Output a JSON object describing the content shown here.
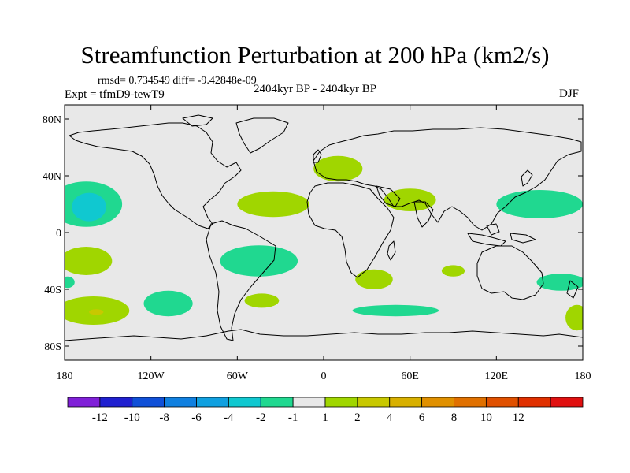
{
  "title": "Streamfunction Perturbation at 200 hPa (km2/s)",
  "stats": "rmsd= 0.734549 diff= -9.42848e-09",
  "experiment": "Expt = tfmD9-tewT9",
  "period": "2404kyr BP - 2404kyr BP",
  "season": "DJF",
  "map": {
    "background_color": "#e8e8e8",
    "lat_labels": [
      "80N",
      "40N",
      "0",
      "40S",
      "80S"
    ],
    "lon_labels": [
      "180",
      "120W",
      "60W",
      "0",
      "60E",
      "120E",
      "180"
    ],
    "lat_values": [
      80,
      40,
      0,
      -40,
      -80
    ],
    "lon_values": [
      -180,
      -120,
      -60,
      0,
      60,
      120,
      180
    ],
    "lat_range": [
      -90,
      90
    ],
    "lon_range": [
      -180,
      180
    ],
    "anomalies": [
      {
        "level": "1 to 2",
        "color": "#a0d600",
        "lon": 10,
        "lat": 45,
        "rlon": 17,
        "rlat": 9
      },
      {
        "level": "1 to 2",
        "color": "#a0d600",
        "lon": -35,
        "lat": 20,
        "rlon": 25,
        "rlat": 9
      },
      {
        "level": "1 to 2",
        "color": "#a0d600",
        "lon": 60,
        "lat": 23,
        "rlon": 18,
        "rlat": 8
      },
      {
        "level": "1 to 2",
        "color": "#a0d600",
        "lon": -165,
        "lat": -20,
        "rlon": 18,
        "rlat": 10
      },
      {
        "level": "1 to 2",
        "color": "#a0d600",
        "lon": -160,
        "lat": -55,
        "rlon": 25,
        "rlat": 10
      },
      {
        "level": "1 to 2",
        "color": "#a0d600",
        "lon": -43,
        "lat": -48,
        "rlon": 12,
        "rlat": 5
      },
      {
        "level": "1 to 2",
        "color": "#a0d600",
        "lon": 35,
        "lat": -33,
        "rlon": 13,
        "rlat": 7
      },
      {
        "level": "1 to 2",
        "color": "#a0d600",
        "lon": 90,
        "lat": -27,
        "rlon": 8,
        "rlat": 4
      },
      {
        "level": "1 to 2",
        "color": "#a0d600",
        "lon": 176,
        "lat": -60,
        "rlon": 8,
        "rlat": 9
      },
      {
        "level": "1 to 2",
        "color": "#a0d600",
        "lon": -160,
        "lat": 20,
        "rlon": 19,
        "rlat": 3
      },
      {
        "level": "2 to 4",
        "color": "#c8c800",
        "lon": -158,
        "lat": -56,
        "rlon": 5,
        "rlat": 2
      },
      {
        "level": "-1 to -2",
        "color": "#20d890",
        "lon": -165,
        "lat": 20,
        "rlon": 25,
        "rlat": 16
      },
      {
        "level": "-1 to -2",
        "color": "#20d890",
        "lon": -45,
        "lat": -20,
        "rlon": 27,
        "rlat": 11
      },
      {
        "level": "-1 to -2",
        "color": "#20d890",
        "lon": -108,
        "lat": -50,
        "rlon": 17,
        "rlat": 9
      },
      {
        "level": "-1 to -2",
        "color": "#20d890",
        "lon": 150,
        "lat": 20,
        "rlon": 30,
        "rlat": 10
      },
      {
        "level": "-1 to -2",
        "color": "#20d890",
        "lon": 165,
        "lat": -35,
        "rlon": 17,
        "rlat": 6
      },
      {
        "level": "-1 to -2",
        "color": "#20d890",
        "lon": 50,
        "lat": -55,
        "rlon": 30,
        "rlat": 4
      },
      {
        "level": "-1 to -2",
        "color": "#20d890",
        "lon": -178,
        "lat": -35,
        "rlon": 5,
        "rlat": 4
      },
      {
        "level": "-2 to -4",
        "color": "#10c8d0",
        "lon": -163,
        "lat": 18,
        "rlon": 12,
        "rlat": 10
      }
    ]
  },
  "colorbar": {
    "colors": [
      "#8020d8",
      "#2020d0",
      "#1050d8",
      "#1080e0",
      "#10a0e0",
      "#10c8d0",
      "#20d890",
      "#e8e8e8",
      "#a0d600",
      "#c8c800",
      "#d8b000",
      "#e09000",
      "#e07000",
      "#e05000",
      "#e03000",
      "#e01010"
    ],
    "labels": [
      "-12",
      "-10",
      "-8",
      "-6",
      "-4",
      "-2",
      "-1",
      "1",
      "2",
      "4",
      "6",
      "8",
      "10",
      "12"
    ]
  }
}
